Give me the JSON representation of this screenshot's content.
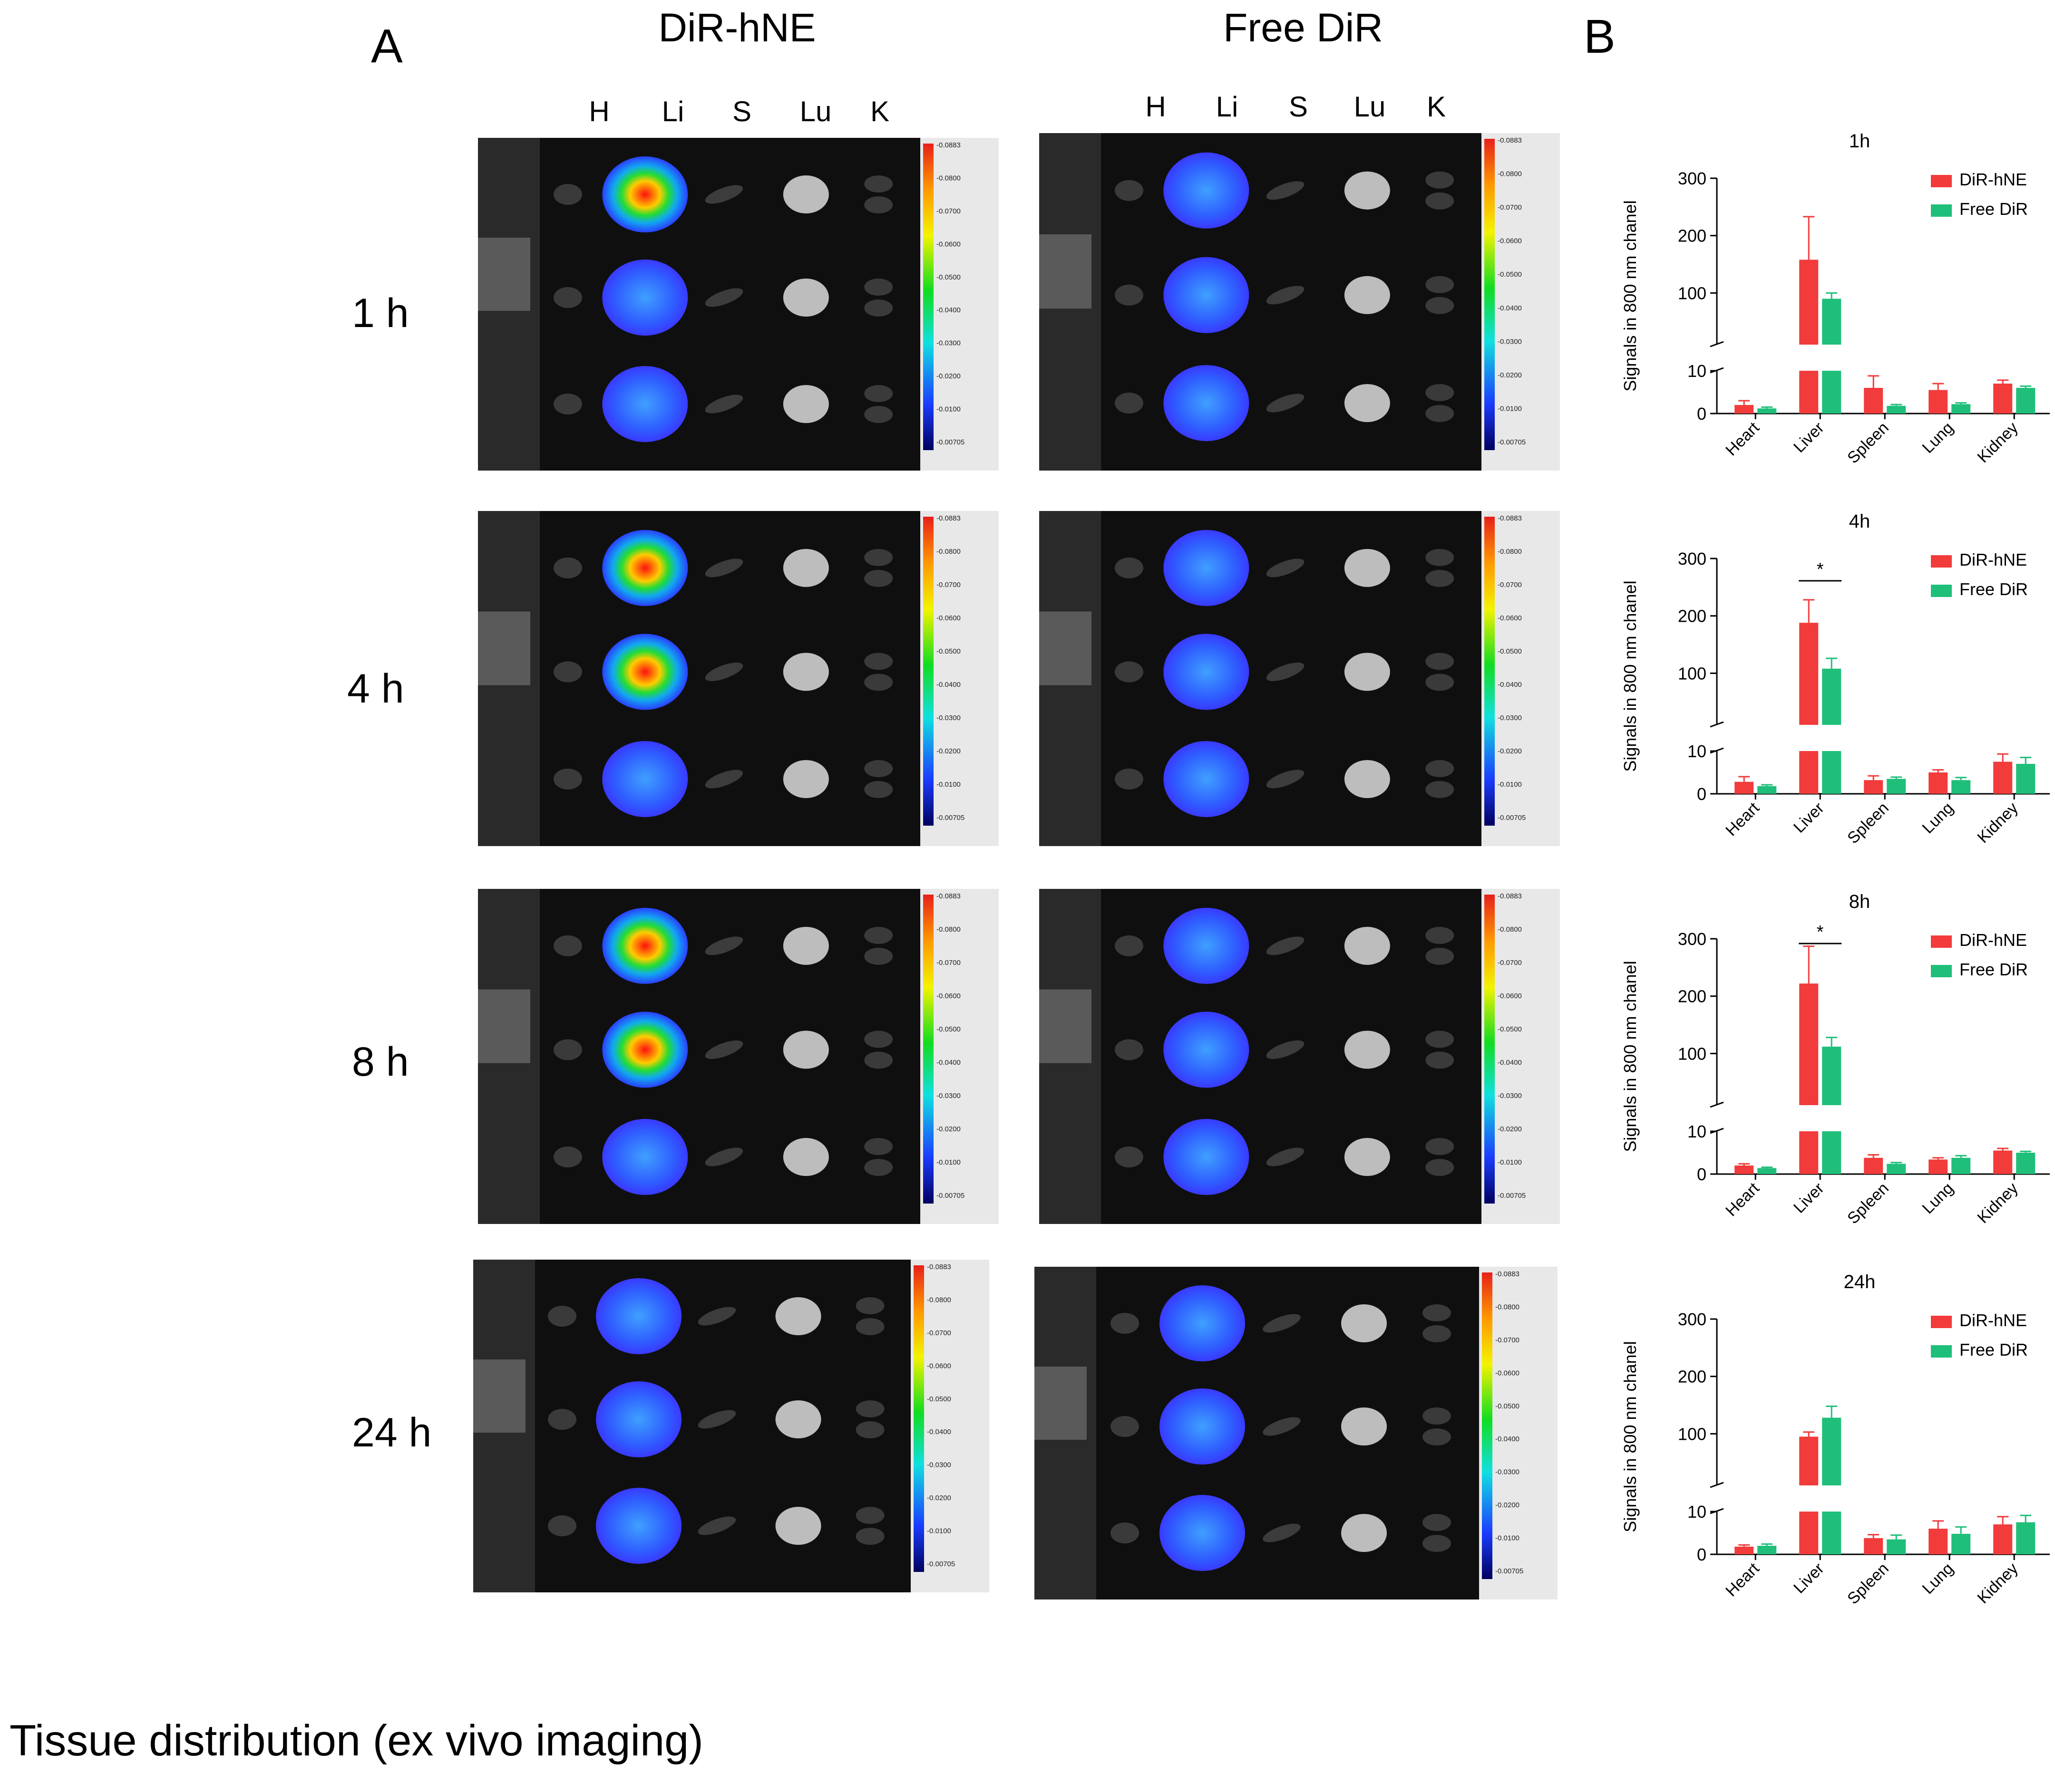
{
  "figure": {
    "panel_a_label": "A",
    "panel_b_label": "B",
    "caption": "Tissue distribution (ex vivo imaging)",
    "columns": [
      "DiR-hNE",
      "Free DiR"
    ],
    "organ_labels": [
      "H",
      "Li",
      "S",
      "Lu",
      "K"
    ],
    "timepoints": [
      "1 h",
      "4 h",
      "8 h",
      "24 h"
    ],
    "colorbar_ticks": [
      "0.0883",
      "0.0800",
      "0.0700",
      "0.0600",
      "0.0500",
      "0.0400",
      "0.0300",
      "0.0200",
      "0.0100",
      "0.00705"
    ],
    "colors": {
      "dir_hne": "#f23b3b",
      "free_dir": "#1fbf7a"
    }
  },
  "chart_data": [
    {
      "type": "bar",
      "title": "1h",
      "ylabel": "Signals in 800 nm chanel",
      "categories": [
        "Heart",
        "Liver",
        "Spleen",
        "Lung",
        "Kidney"
      ],
      "y_ticks": [
        "0",
        "10",
        "100",
        "200",
        "300"
      ],
      "ylim": [
        0,
        300
      ],
      "y_break": [
        10,
        10
      ],
      "series": [
        {
          "name": "DiR-hNE",
          "color": "#f23b3b",
          "values": [
            2.0,
            158,
            6.0,
            5.5,
            7.0
          ],
          "errors": [
            1.0,
            75,
            2.8,
            1.5,
            0.8
          ]
        },
        {
          "name": "Free DiR",
          "color": "#1fbf7a",
          "values": [
            1.2,
            90,
            1.8,
            2.2,
            6.0
          ],
          "errors": [
            0.3,
            10,
            0.3,
            0.3,
            0.4
          ]
        }
      ],
      "annotations": []
    },
    {
      "type": "bar",
      "title": "4h",
      "ylabel": "Signals in 800 nm chanel",
      "categories": [
        "Heart",
        "Liver",
        "Spleen",
        "Lung",
        "Kidney"
      ],
      "y_ticks": [
        "0",
        "10",
        "100",
        "200",
        "300"
      ],
      "ylim": [
        0,
        300
      ],
      "y_break": [
        10,
        10
      ],
      "series": [
        {
          "name": "DiR-hNE",
          "color": "#f23b3b",
          "values": [
            2.8,
            188,
            3.2,
            5.0,
            7.5
          ],
          "errors": [
            1.2,
            40,
            1.0,
            0.6,
            1.8
          ]
        },
        {
          "name": "Free DiR",
          "color": "#1fbf7a",
          "values": [
            1.8,
            108,
            3.5,
            3.2,
            7.0
          ],
          "errors": [
            0.3,
            18,
            0.4,
            0.6,
            1.5
          ]
        }
      ],
      "annotations": [
        "*"
      ]
    },
    {
      "type": "bar",
      "title": "8h",
      "ylabel": "Signals in 800 nm chanel",
      "categories": [
        "Heart",
        "Liver",
        "Spleen",
        "Lung",
        "Kidney"
      ],
      "y_ticks": [
        "0",
        "10",
        "100",
        "200",
        "300"
      ],
      "ylim": [
        0,
        300
      ],
      "y_break": [
        10,
        10
      ],
      "series": [
        {
          "name": "DiR-hNE",
          "color": "#f23b3b",
          "values": [
            2.0,
            222,
            3.8,
            3.4,
            5.5
          ],
          "errors": [
            0.4,
            65,
            0.7,
            0.4,
            0.5
          ]
        },
        {
          "name": "Free DiR",
          "color": "#1fbf7a",
          "values": [
            1.4,
            112,
            2.4,
            3.8,
            5.0
          ],
          "errors": [
            0.2,
            16,
            0.3,
            0.5,
            0.3
          ]
        }
      ],
      "annotations": [
        "*"
      ]
    },
    {
      "type": "bar",
      "title": "24h",
      "ylabel": "Signals in 800 nm chanel",
      "categories": [
        "Heart",
        "Liver",
        "Spleen",
        "Lung",
        "Kidney"
      ],
      "y_ticks": [
        "0",
        "10",
        "100",
        "200",
        "300"
      ],
      "ylim": [
        0,
        300
      ],
      "y_break": [
        10,
        10
      ],
      "series": [
        {
          "name": "DiR-hNE",
          "color": "#f23b3b",
          "values": [
            1.8,
            95,
            3.8,
            6.0,
            7.0
          ],
          "errors": [
            0.4,
            8,
            0.8,
            1.8,
            1.8
          ]
        },
        {
          "name": "Free DiR",
          "color": "#1fbf7a",
          "values": [
            2.0,
            128,
            3.5,
            4.8,
            7.5
          ],
          "errors": [
            0.4,
            20,
            1.0,
            1.6,
            1.6
          ]
        }
      ],
      "annotations": []
    }
  ]
}
